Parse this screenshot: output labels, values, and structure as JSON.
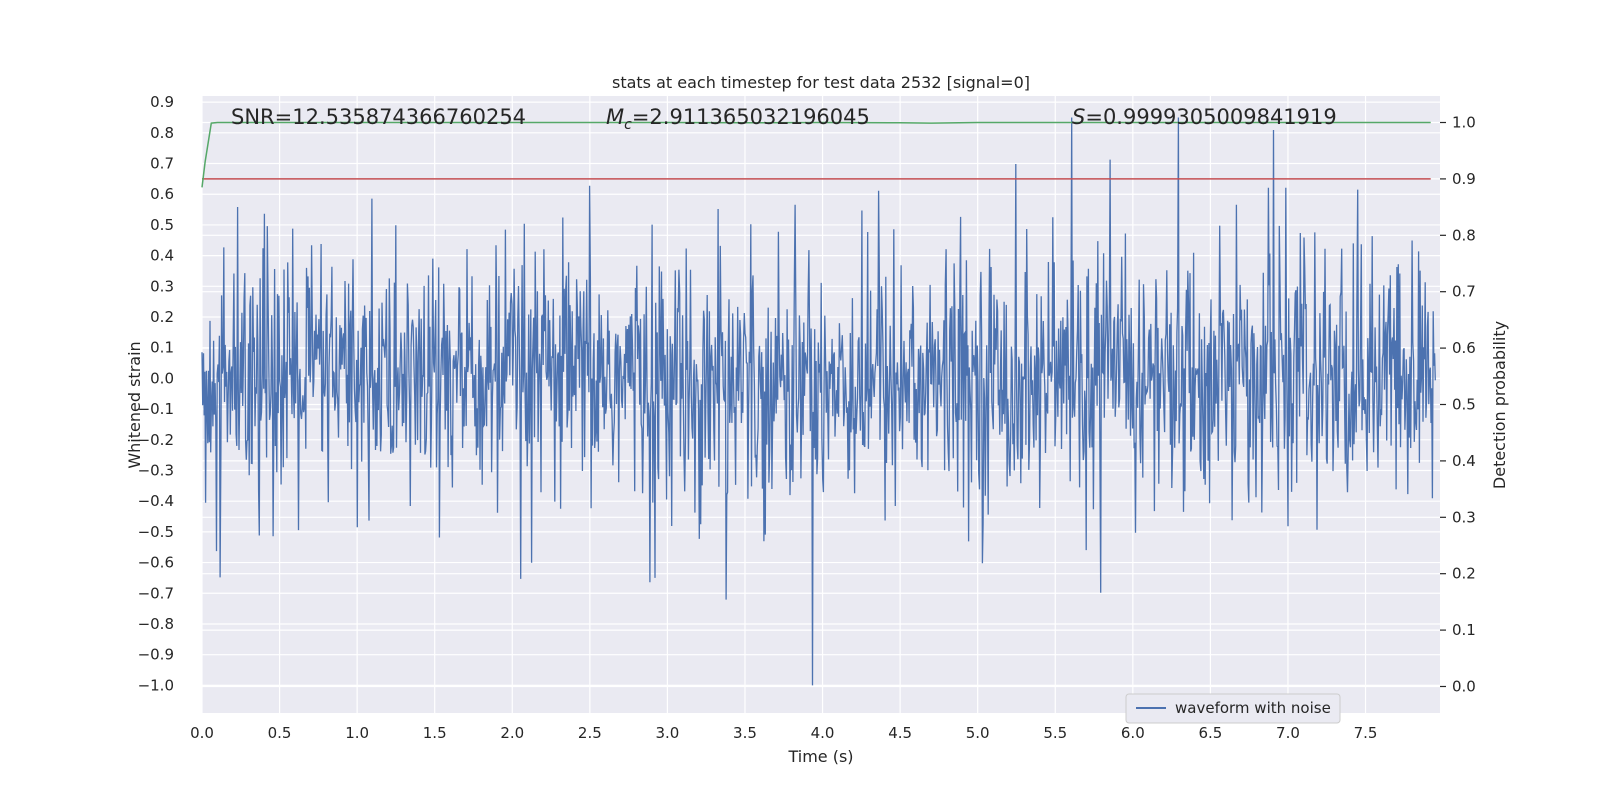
{
  "chart_data": {
    "type": "line",
    "title": "stats at each timestep for test data 2532 [signal=0]",
    "xlabel": "Time (s)",
    "ylabel": "Whitened strain",
    "y2label": "Detection probability",
    "xlim": [
      0.0,
      7.98
    ],
    "ylim": [
      -1.09,
      0.92
    ],
    "y2lim": [
      -0.047,
      1.047
    ],
    "x_ticks": [
      0.0,
      0.5,
      1.0,
      1.5,
      2.0,
      2.5,
      3.0,
      3.5,
      4.0,
      4.5,
      5.0,
      5.5,
      6.0,
      6.5,
      7.0,
      7.5
    ],
    "x_tick_labels": [
      "0.0",
      "0.5",
      "1.0",
      "1.5",
      "2.0",
      "2.5",
      "3.0",
      "3.5",
      "4.0",
      "4.5",
      "5.0",
      "5.5",
      "6.0",
      "6.5",
      "7.0",
      "7.5"
    ],
    "y_ticks": [
      0.9,
      0.8,
      0.7,
      0.6,
      0.5,
      0.4,
      0.3,
      0.2,
      0.1,
      0.0,
      -0.1,
      -0.2,
      -0.3,
      -0.4,
      -0.5,
      -0.6,
      -0.7,
      -0.8,
      -0.9,
      -1.0
    ],
    "y_tick_labels": [
      "0.9",
      "0.8",
      "0.7",
      "0.6",
      "0.5",
      "0.4",
      "0.3",
      "0.2",
      "0.1",
      "0.0",
      "−0.1",
      "−0.2",
      "−0.3",
      "−0.4",
      "−0.5",
      "−0.6",
      "−0.7",
      "−0.8",
      "−0.9",
      "−1.0"
    ],
    "y2_ticks": [
      1.0,
      0.9,
      0.8,
      0.7,
      0.6,
      0.5,
      0.4,
      0.3,
      0.2,
      0.1,
      0.0
    ],
    "y2_tick_labels": [
      "1.0",
      "0.9",
      "0.8",
      "0.7",
      "0.6",
      "0.5",
      "0.4",
      "0.3",
      "0.2",
      "0.1",
      "0.0"
    ],
    "grid": true,
    "annotations": {
      "snr": "SNR=12.535874366760254",
      "mc_symbol": "M",
      "mc_sub": "c",
      "mc_value": "=2.911365032196045",
      "s_symbol": "S",
      "s_value": "=0.9999305009841919"
    },
    "legend": {
      "position": "lower-right",
      "entries": [
        "waveform with noise"
      ]
    },
    "series": [
      {
        "name": "waveform with noise",
        "axis": "left",
        "color": "#4c72b0",
        "kind": "noise",
        "description_stats": {
          "typical_amplitude": 0.45,
          "max": 0.85,
          "min": -1.0,
          "samples": 1700
        }
      },
      {
        "name": "detection probability",
        "axis": "right",
        "color": "#55a868",
        "x": [
          0.0,
          0.02,
          0.06,
          0.1,
          0.5,
          1.0,
          2.0,
          3.0,
          3.5,
          4.0,
          4.5,
          4.7,
          5.0,
          6.0,
          7.0,
          7.5,
          7.92
        ],
        "values": [
          0.885,
          0.93,
          0.999,
          1.0,
          1.0,
          1.0,
          1.0,
          1.0,
          0.9995,
          1.0,
          0.9995,
          0.999,
          1.0,
          1.0,
          1.0,
          1.0,
          1.0
        ]
      },
      {
        "name": "threshold",
        "axis": "right",
        "color": "#c44e52",
        "x": [
          0.0,
          7.92
        ],
        "values": [
          0.9,
          0.9
        ]
      }
    ]
  }
}
